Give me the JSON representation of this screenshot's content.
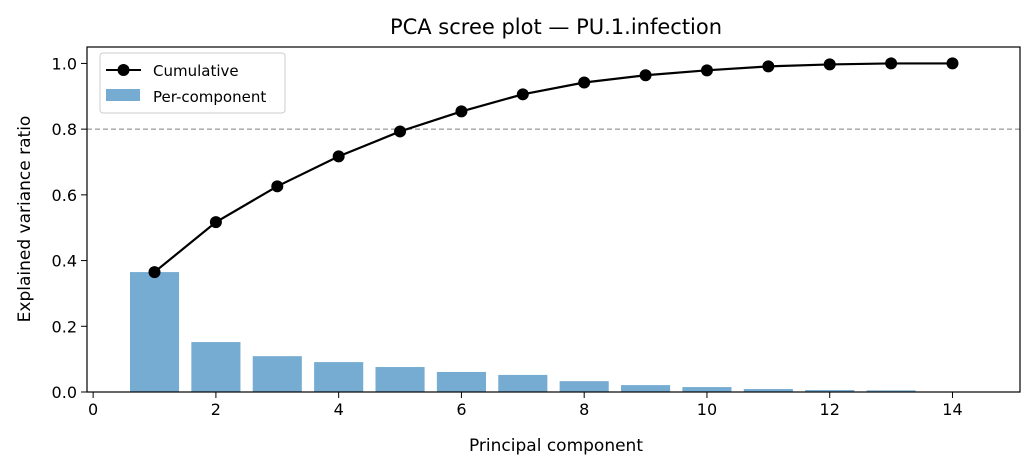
{
  "chart_data": {
    "type": "bar+line",
    "title": "PCA scree plot — PU.1.infection",
    "xlabel": "Principal component",
    "ylabel": "Explained variance ratio",
    "xlim": [
      -0.1,
      15.1
    ],
    "ylim": [
      0,
      1.05
    ],
    "xticks": [
      0,
      2,
      4,
      6,
      8,
      10,
      12,
      14
    ],
    "yticks": [
      0.0,
      0.2,
      0.4,
      0.6,
      0.8,
      1.0
    ],
    "x": [
      1,
      2,
      3,
      4,
      5,
      6,
      7,
      8,
      9,
      10,
      11,
      12,
      13,
      14
    ],
    "series": [
      {
        "name": "Per-component",
        "type": "bar",
        "color": "#76acd2",
        "values": [
          0.365,
          0.152,
          0.109,
          0.091,
          0.076,
          0.061,
          0.052,
          0.033,
          0.021,
          0.015,
          0.009,
          0.006,
          0.005,
          0.001
        ]
      },
      {
        "name": "Cumulative",
        "type": "line",
        "color": "#000000",
        "values": [
          0.365,
          0.517,
          0.626,
          0.717,
          0.793,
          0.854,
          0.906,
          0.942,
          0.964,
          0.979,
          0.991,
          0.997,
          1.0,
          1.0
        ]
      }
    ],
    "threshold": {
      "y": 0.8,
      "color": "#808080",
      "style": "dashed"
    },
    "legend": "top-left",
    "grid": false
  }
}
